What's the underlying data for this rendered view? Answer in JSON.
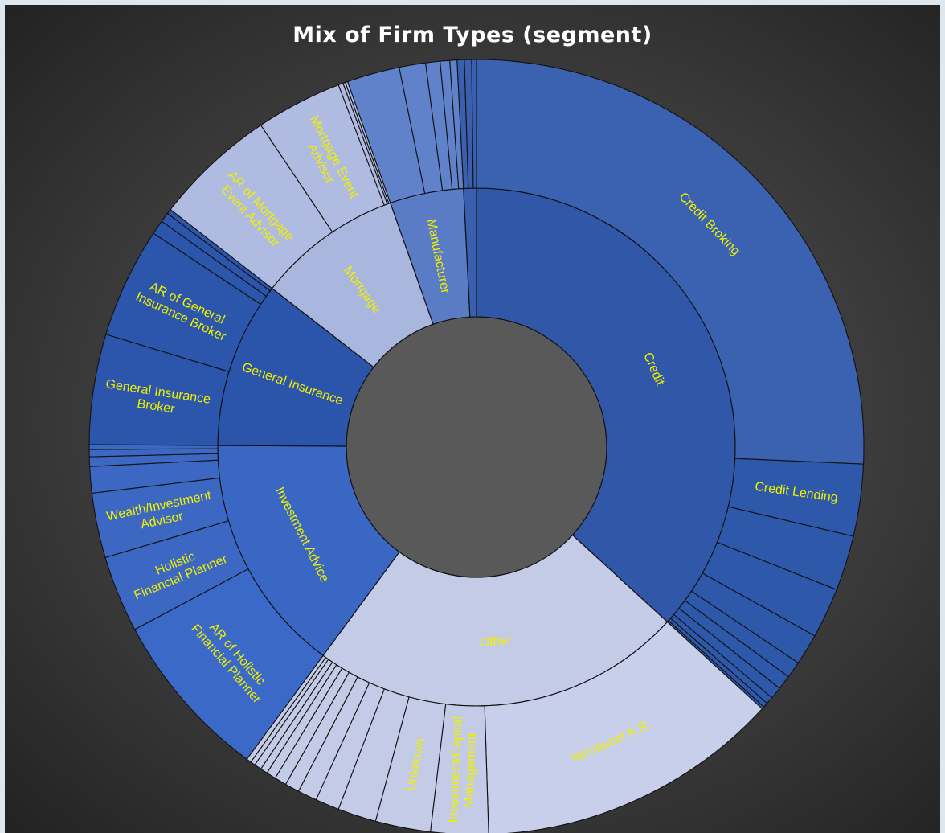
{
  "chart_data": {
    "type": "sunburst",
    "title": "Mix of Firm Types (segment)",
    "colors": {
      "background": "#3a3a3a",
      "hole": "#595959",
      "label": "#f0f000",
      "credit": "#3158a8",
      "credit_outer": "#3a62b0",
      "other": "#c3cbe6",
      "investment": "#3a67c4",
      "general_insurance": "#2b55ab",
      "mortgage": "#a9b6dd",
      "manufacturer": "#5a7cc6"
    },
    "segments": [
      {
        "name": "Credit",
        "value": 36.8,
        "color": "#3158a8",
        "children": [
          {
            "name": "Credit Broking",
            "value": 25.7,
            "color": "#3a62b0"
          },
          {
            "name": "Credit Lending",
            "value": 3.0,
            "color": "#2e58aa"
          },
          {
            "name": "",
            "value": 2.3,
            "color": "#2e58aa"
          },
          {
            "name": "",
            "value": 2.1,
            "color": "#2e58aa"
          },
          {
            "name": "",
            "value": 1.3,
            "color": "#2e58aa"
          },
          {
            "name": "",
            "value": 0.7,
            "color": "#2e58aa"
          },
          {
            "name": "",
            "value": 0.6,
            "color": "#2e58aa"
          },
          {
            "name": "",
            "value": 0.5,
            "color": "#2e58aa"
          },
          {
            "name": "",
            "value": 0.3,
            "color": "#2e58aa"
          },
          {
            "name": "",
            "value": 0.2,
            "color": "#2e58aa"
          },
          {
            "name": "",
            "value": 0.1,
            "color": "#2e58aa"
          }
        ]
      },
      {
        "name": "Other",
        "value": 23.3,
        "color": "#c3cbe6",
        "children": [
          {
            "name": "Introducer A.R.",
            "value": 12.7,
            "color": "#c8cfea"
          },
          {
            "name": "Investment/Capital Management",
            "value": 2.4,
            "color": "#c3cbe6"
          },
          {
            "name": "Unknown",
            "value": 2.3,
            "color": "#c3cbe6"
          },
          {
            "name": "",
            "value": 1.6,
            "color": "#c3cbe6"
          },
          {
            "name": "",
            "value": 1.0,
            "color": "#c3cbe6"
          },
          {
            "name": "",
            "value": 0.8,
            "color": "#c3cbe6"
          },
          {
            "name": "",
            "value": 0.6,
            "color": "#c3cbe6"
          },
          {
            "name": "",
            "value": 0.5,
            "color": "#c3cbe6"
          },
          {
            "name": "",
            "value": 0.4,
            "color": "#c3cbe6"
          },
          {
            "name": "",
            "value": 0.3,
            "color": "#c3cbe6"
          },
          {
            "name": "",
            "value": 0.3,
            "color": "#c3cbe6"
          },
          {
            "name": "",
            "value": 0.2,
            "color": "#c3cbe6"
          },
          {
            "name": "",
            "value": 0.2,
            "color": "#c3cbe6"
          }
        ]
      },
      {
        "name": "Investment Advice",
        "value": 15.0,
        "color": "#3a67c4",
        "children": [
          {
            "name": "AR of Holistic Financial Planner",
            "value": 7.1,
            "color": "#3a69c8"
          },
          {
            "name": "Holistic Financial Planner",
            "value": 3.2,
            "color": "#3c68c3"
          },
          {
            "name": "Wealth/Investment Advisor",
            "value": 2.7,
            "color": "#3c68c3"
          },
          {
            "name": "",
            "value": 1.1,
            "color": "#3c68c3"
          },
          {
            "name": "",
            "value": 0.4,
            "color": "#3c68c3"
          },
          {
            "name": "",
            "value": 0.3,
            "color": "#3c68c3"
          },
          {
            "name": "",
            "value": 0.2,
            "color": "#3c68c3"
          }
        ]
      },
      {
        "name": "General Insurance",
        "value": 10.4,
        "color": "#2b55ab",
        "children": [
          {
            "name": "General Insurance Broker",
            "value": 4.6,
            "color": "#2c56ac"
          },
          {
            "name": "AR of General Insurance Broker",
            "value": 4.6,
            "color": "#2c56ac"
          },
          {
            "name": "",
            "value": 0.6,
            "color": "#2c56ac"
          },
          {
            "name": "",
            "value": 0.4,
            "color": "#2c56ac"
          },
          {
            "name": "",
            "value": 0.2,
            "color": "#2c56ac"
          }
        ]
      },
      {
        "name": "Mortgage",
        "value": 9.1,
        "color": "#a9b6dd",
        "children": [
          {
            "name": "AR of Mortgage Event Advisor",
            "value": 5.1,
            "color": "#afbbe0"
          },
          {
            "name": "Mortgage Event Advisor",
            "value": 3.6,
            "color": "#afbbe0"
          },
          {
            "name": "",
            "value": 0.2,
            "color": "#afbbe0"
          },
          {
            "name": "",
            "value": 0.1,
            "color": "#afbbe0"
          },
          {
            "name": "",
            "value": 0.1,
            "color": "#afbbe0"
          }
        ]
      },
      {
        "name": "Manufacturer",
        "value": 4.6,
        "color": "#5a7cc6",
        "children": [
          {
            "name": "",
            "value": 2.2,
            "color": "#5f82cb"
          },
          {
            "name": "",
            "value": 1.1,
            "color": "#5f82cb"
          },
          {
            "name": "",
            "value": 0.6,
            "color": "#5f82cb"
          },
          {
            "name": "",
            "value": 0.4,
            "color": "#5f82cb"
          },
          {
            "name": "",
            "value": 0.3,
            "color": "#5f82cb"
          }
        ]
      },
      {
        "name": "",
        "value": 0.8,
        "color": "#3a5fae",
        "children": [
          {
            "name": "",
            "value": 0.3,
            "color": "#3a5fae"
          },
          {
            "name": "",
            "value": 0.3,
            "color": "#3a5fae"
          },
          {
            "name": "",
            "value": 0.2,
            "color": "#3a5fae"
          }
        ]
      }
    ]
  }
}
